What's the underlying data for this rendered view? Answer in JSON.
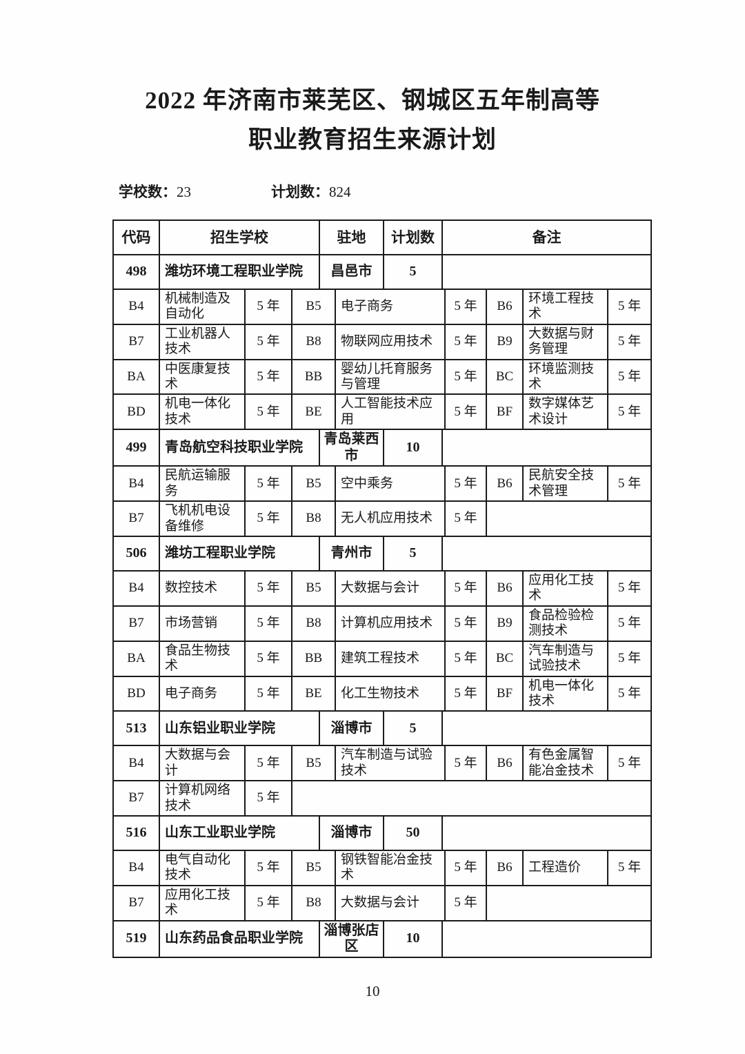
{
  "page": {
    "title_line1": "2022 年济南市莱芜区、钢城区五年制高等",
    "title_line2": "职业教育招生来源计划",
    "page_number": "10"
  },
  "meta": {
    "schools_label": "学校数：",
    "schools_count": "23",
    "plans_label": "计划数：",
    "plans_count": "824"
  },
  "table": {
    "headers": [
      "代码",
      "招生学校",
      "驻地",
      "计划数",
      "备注"
    ],
    "blocks": [
      {
        "code": "498",
        "school": "潍坊环境工程职业学院",
        "location": "昌邑市",
        "plan": "5",
        "remark": "",
        "major_rows": [
          [
            {
              "code": "B4",
              "name": "机械制造及自动化",
              "years": "5 年"
            },
            {
              "code": "B5",
              "name": "电子商务",
              "years": "5 年"
            },
            {
              "code": "B6",
              "name": "环境工程技术",
              "years": "5 年"
            }
          ],
          [
            {
              "code": "B7",
              "name": "工业机器人技术",
              "years": "5 年"
            },
            {
              "code": "B8",
              "name": "物联网应用技术",
              "years": "5 年"
            },
            {
              "code": "B9",
              "name": "大数据与财务管理",
              "years": "5 年"
            }
          ],
          [
            {
              "code": "BA",
              "name": "中医康复技术",
              "years": "5 年"
            },
            {
              "code": "BB",
              "name": "婴幼儿托育服务与管理",
              "years": "5 年"
            },
            {
              "code": "BC",
              "name": "环境监测技术",
              "years": "5 年"
            }
          ],
          [
            {
              "code": "BD",
              "name": "机电一体化技术",
              "years": "5 年"
            },
            {
              "code": "BE",
              "name": "人工智能技术应用",
              "years": "5 年"
            },
            {
              "code": "BF",
              "name": "数字媒体艺术设计",
              "years": "5 年"
            }
          ]
        ]
      },
      {
        "code": "499",
        "school": "青岛航空科技职业学院",
        "location": "青岛莱西市",
        "plan": "10",
        "remark": "",
        "major_rows": [
          [
            {
              "code": "B4",
              "name": "民航运输服务",
              "years": "5 年"
            },
            {
              "code": "B5",
              "name": "空中乘务",
              "years": "5 年"
            },
            {
              "code": "B6",
              "name": "民航安全技术管理",
              "years": "5 年"
            }
          ],
          [
            {
              "code": "B7",
              "name": "飞机机电设备维修",
              "years": "5 年"
            },
            {
              "code": "B8",
              "name": "无人机应用技术",
              "years": "5 年"
            }
          ]
        ]
      },
      {
        "code": "506",
        "school": "潍坊工程职业学院",
        "location": "青州市",
        "plan": "5",
        "remark": "",
        "major_rows": [
          [
            {
              "code": "B4",
              "name": "数控技术",
              "years": "5 年"
            },
            {
              "code": "B5",
              "name": "大数据与会计",
              "years": "5 年"
            },
            {
              "code": "B6",
              "name": "应用化工技术",
              "years": "5 年"
            }
          ],
          [
            {
              "code": "B7",
              "name": "市场营销",
              "years": "5 年"
            },
            {
              "code": "B8",
              "name": "计算机应用技术",
              "years": "5 年"
            },
            {
              "code": "B9",
              "name": "食品检验检测技术",
              "years": "5 年"
            }
          ],
          [
            {
              "code": "BA",
              "name": "食品生物技术",
              "years": "5 年"
            },
            {
              "code": "BB",
              "name": "建筑工程技术",
              "years": "5 年"
            },
            {
              "code": "BC",
              "name": "汽车制造与试验技术",
              "years": "5 年"
            }
          ],
          [
            {
              "code": "BD",
              "name": "电子商务",
              "years": "5 年"
            },
            {
              "code": "BE",
              "name": "化工生物技术",
              "years": "5 年"
            },
            {
              "code": "BF",
              "name": "机电一体化技术",
              "years": "5 年"
            }
          ]
        ]
      },
      {
        "code": "513",
        "school": "山东铝业职业学院",
        "location": "淄博市",
        "plan": "5",
        "remark": "",
        "major_rows": [
          [
            {
              "code": "B4",
              "name": "大数据与会计",
              "years": "5 年"
            },
            {
              "code": "B5",
              "name": "汽车制造与试验技术",
              "years": "5 年"
            },
            {
              "code": "B6",
              "name": "有色金属智能冶金技术",
              "years": "5 年"
            }
          ],
          [
            {
              "code": "B7",
              "name": "计算机网络技术",
              "years": "5 年"
            }
          ]
        ]
      },
      {
        "code": "516",
        "school": "山东工业职业学院",
        "location": "淄博市",
        "plan": "50",
        "remark": "",
        "major_rows": [
          [
            {
              "code": "B4",
              "name": "电气自动化技术",
              "years": "5 年"
            },
            {
              "code": "B5",
              "name": "钢铁智能冶金技术",
              "years": "5 年"
            },
            {
              "code": "B6",
              "name": "工程造价",
              "years": "5 年"
            }
          ],
          [
            {
              "code": "B7",
              "name": "应用化工技术",
              "years": "5 年"
            },
            {
              "code": "B8",
              "name": "大数据与会计",
              "years": "5 年"
            }
          ]
        ]
      },
      {
        "code": "519",
        "school": "山东药品食品职业学院",
        "location": "淄博张店区",
        "plan": "10",
        "remark": "",
        "major_rows": []
      }
    ]
  }
}
